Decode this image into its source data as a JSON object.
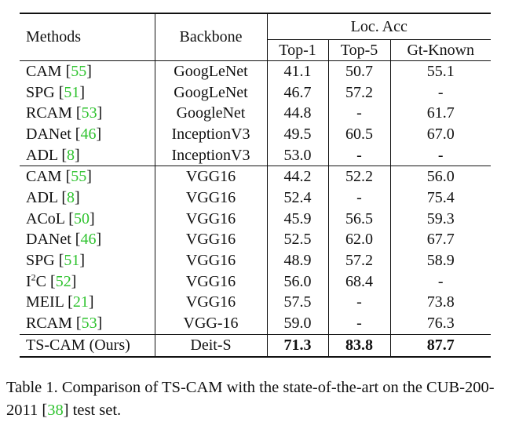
{
  "header": {
    "methods": "Methods",
    "backbone": "Backbone",
    "loc_acc": "Loc. Acc",
    "top1": "Top-1",
    "top5": "Top-5",
    "gt_known": "Gt-Known"
  },
  "rows": [
    {
      "method": "CAM",
      "cite": "55",
      "backbone": "GoogLeNet",
      "top1": "41.1",
      "top5": "50.7",
      "gt": "55.1"
    },
    {
      "method": "SPG",
      "cite": "51",
      "backbone": "GoogLeNet",
      "top1": "46.7",
      "top5": "57.2",
      "gt": "-"
    },
    {
      "method": "RCAM",
      "cite": "53",
      "backbone": "GoogleNet",
      "top1": "44.8",
      "top5": "-",
      "gt": "61.7"
    },
    {
      "method": "DANet",
      "cite": "46",
      "backbone": "InceptionV3",
      "top1": "49.5",
      "top5": "60.5",
      "gt": "67.0"
    },
    {
      "method": "ADL",
      "cite": "8",
      "backbone": "InceptionV3",
      "top1": "53.0",
      "top5": "-",
      "gt": "-"
    },
    {
      "method": "CAM",
      "cite": "55",
      "backbone": "VGG16",
      "top1": "44.2",
      "top5": "52.2",
      "gt": "56.0"
    },
    {
      "method": "ADL",
      "cite": "8",
      "backbone": "VGG16",
      "top1": "52.4",
      "top5": "-",
      "gt": "75.4"
    },
    {
      "method": "ACoL",
      "cite": "50",
      "backbone": "VGG16",
      "top1": "45.9",
      "top5": "56.5",
      "gt": "59.3"
    },
    {
      "method": "DANet",
      "cite": "46",
      "backbone": "VGG16",
      "top1": "52.5",
      "top5": "62.0",
      "gt": "67.7"
    },
    {
      "method": "SPG",
      "cite": "51",
      "backbone": "VGG16",
      "top1": "48.9",
      "top5": "57.2",
      "gt": "58.9"
    },
    {
      "method": "I",
      "sup": "2",
      "method_suffix": "C",
      "cite": "52",
      "backbone": "VGG16",
      "top1": "56.0",
      "top5": "68.4",
      "gt": "-"
    },
    {
      "method": "MEIL",
      "cite": "21",
      "backbone": "VGG16",
      "top1": "57.5",
      "top5": "-",
      "gt": "73.8"
    },
    {
      "method": "RCAM",
      "cite": "53",
      "backbone": "VGG-16",
      "top1": "59.0",
      "top5": "-",
      "gt": "76.3"
    },
    {
      "method": "TS-CAM (Ours)",
      "backbone": "Deit-S",
      "top1": "71.3",
      "top5": "83.8",
      "gt": "87.7"
    }
  ],
  "caption": {
    "text_before": "Table 1. Comparison of TS-CAM with the state-of-the-art on the CUB-200-2011 ",
    "cite": "38",
    "text_after": " test set."
  },
  "colors": {
    "citation": "#2fc32f",
    "text": "#111111"
  }
}
